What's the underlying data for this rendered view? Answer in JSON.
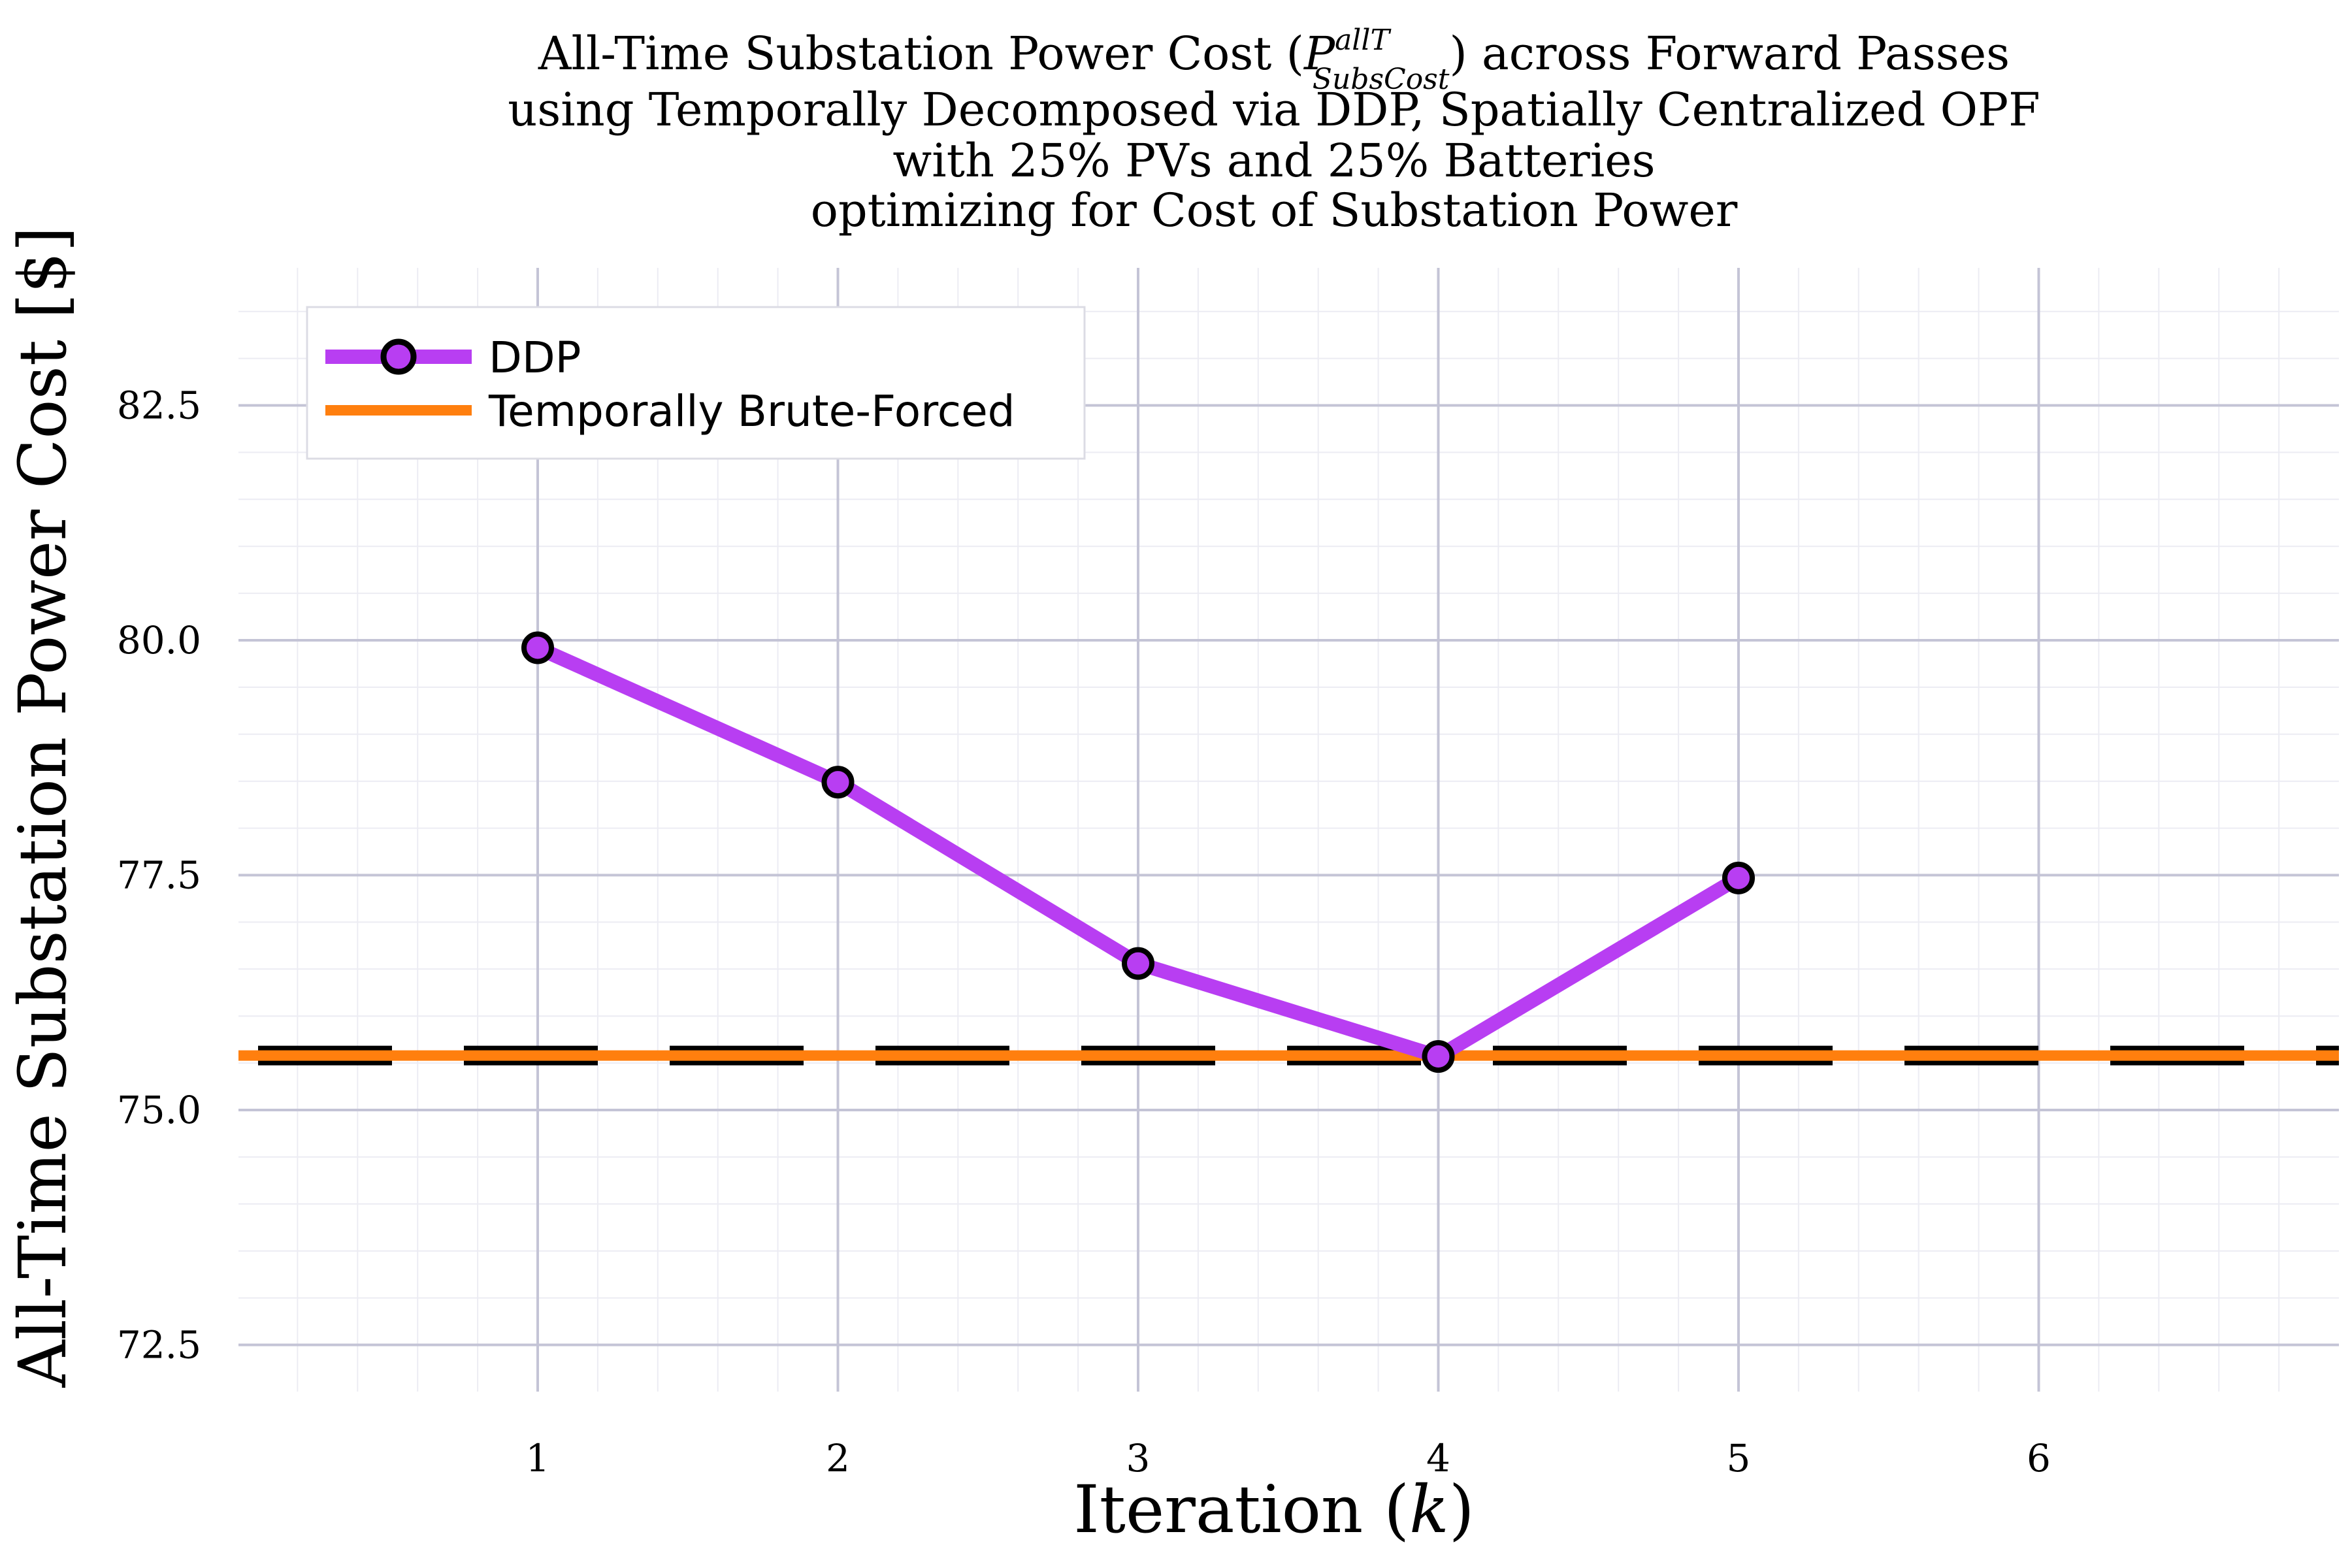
{
  "chart_data": {
    "type": "line",
    "title": {
      "line1_pre": "All-Time Substation Power Cost (",
      "symbol": "P",
      "superscript": "allT",
      "subscript": "SubsCost",
      "line1_post": ") across Forward Passes",
      "line2": "using Temporally Decomposed via DDP, Spatially Centralized OPF",
      "line3": "with 25% PVs and 25% Batteries",
      "line4": "optimizing for Cost of Substation Power"
    },
    "xlabel": {
      "text": "Iteration (",
      "var": "k",
      "close": ")"
    },
    "ylabel": "All-Time Substation Power Cost [$]",
    "xlim": [
      0,
      7
    ],
    "ylim": [
      72.0,
      84.0
    ],
    "x_ticks": [
      1,
      2,
      3,
      4,
      5,
      6
    ],
    "x_tick_labels": [
      "1",
      "2",
      "3",
      "4",
      "5",
      "6"
    ],
    "y_ticks": [
      72.5,
      75.0,
      77.5,
      80.0,
      82.5
    ],
    "y_tick_labels": [
      "72.5",
      "75.0",
      "77.5",
      "80.0",
      "82.5"
    ],
    "grid": true,
    "legend_position": "top-left",
    "series": [
      {
        "name": "DDP",
        "color": "#b83ef2",
        "marker": "circle",
        "x": [
          1,
          2,
          3,
          4,
          5
        ],
        "y": [
          79.92,
          78.49,
          76.56,
          75.57,
          77.47
        ]
      },
      {
        "name": "Temporally Brute-Forced",
        "color": "#ff7f0e",
        "style": "horizontal-line",
        "y": 75.58
      }
    ]
  }
}
